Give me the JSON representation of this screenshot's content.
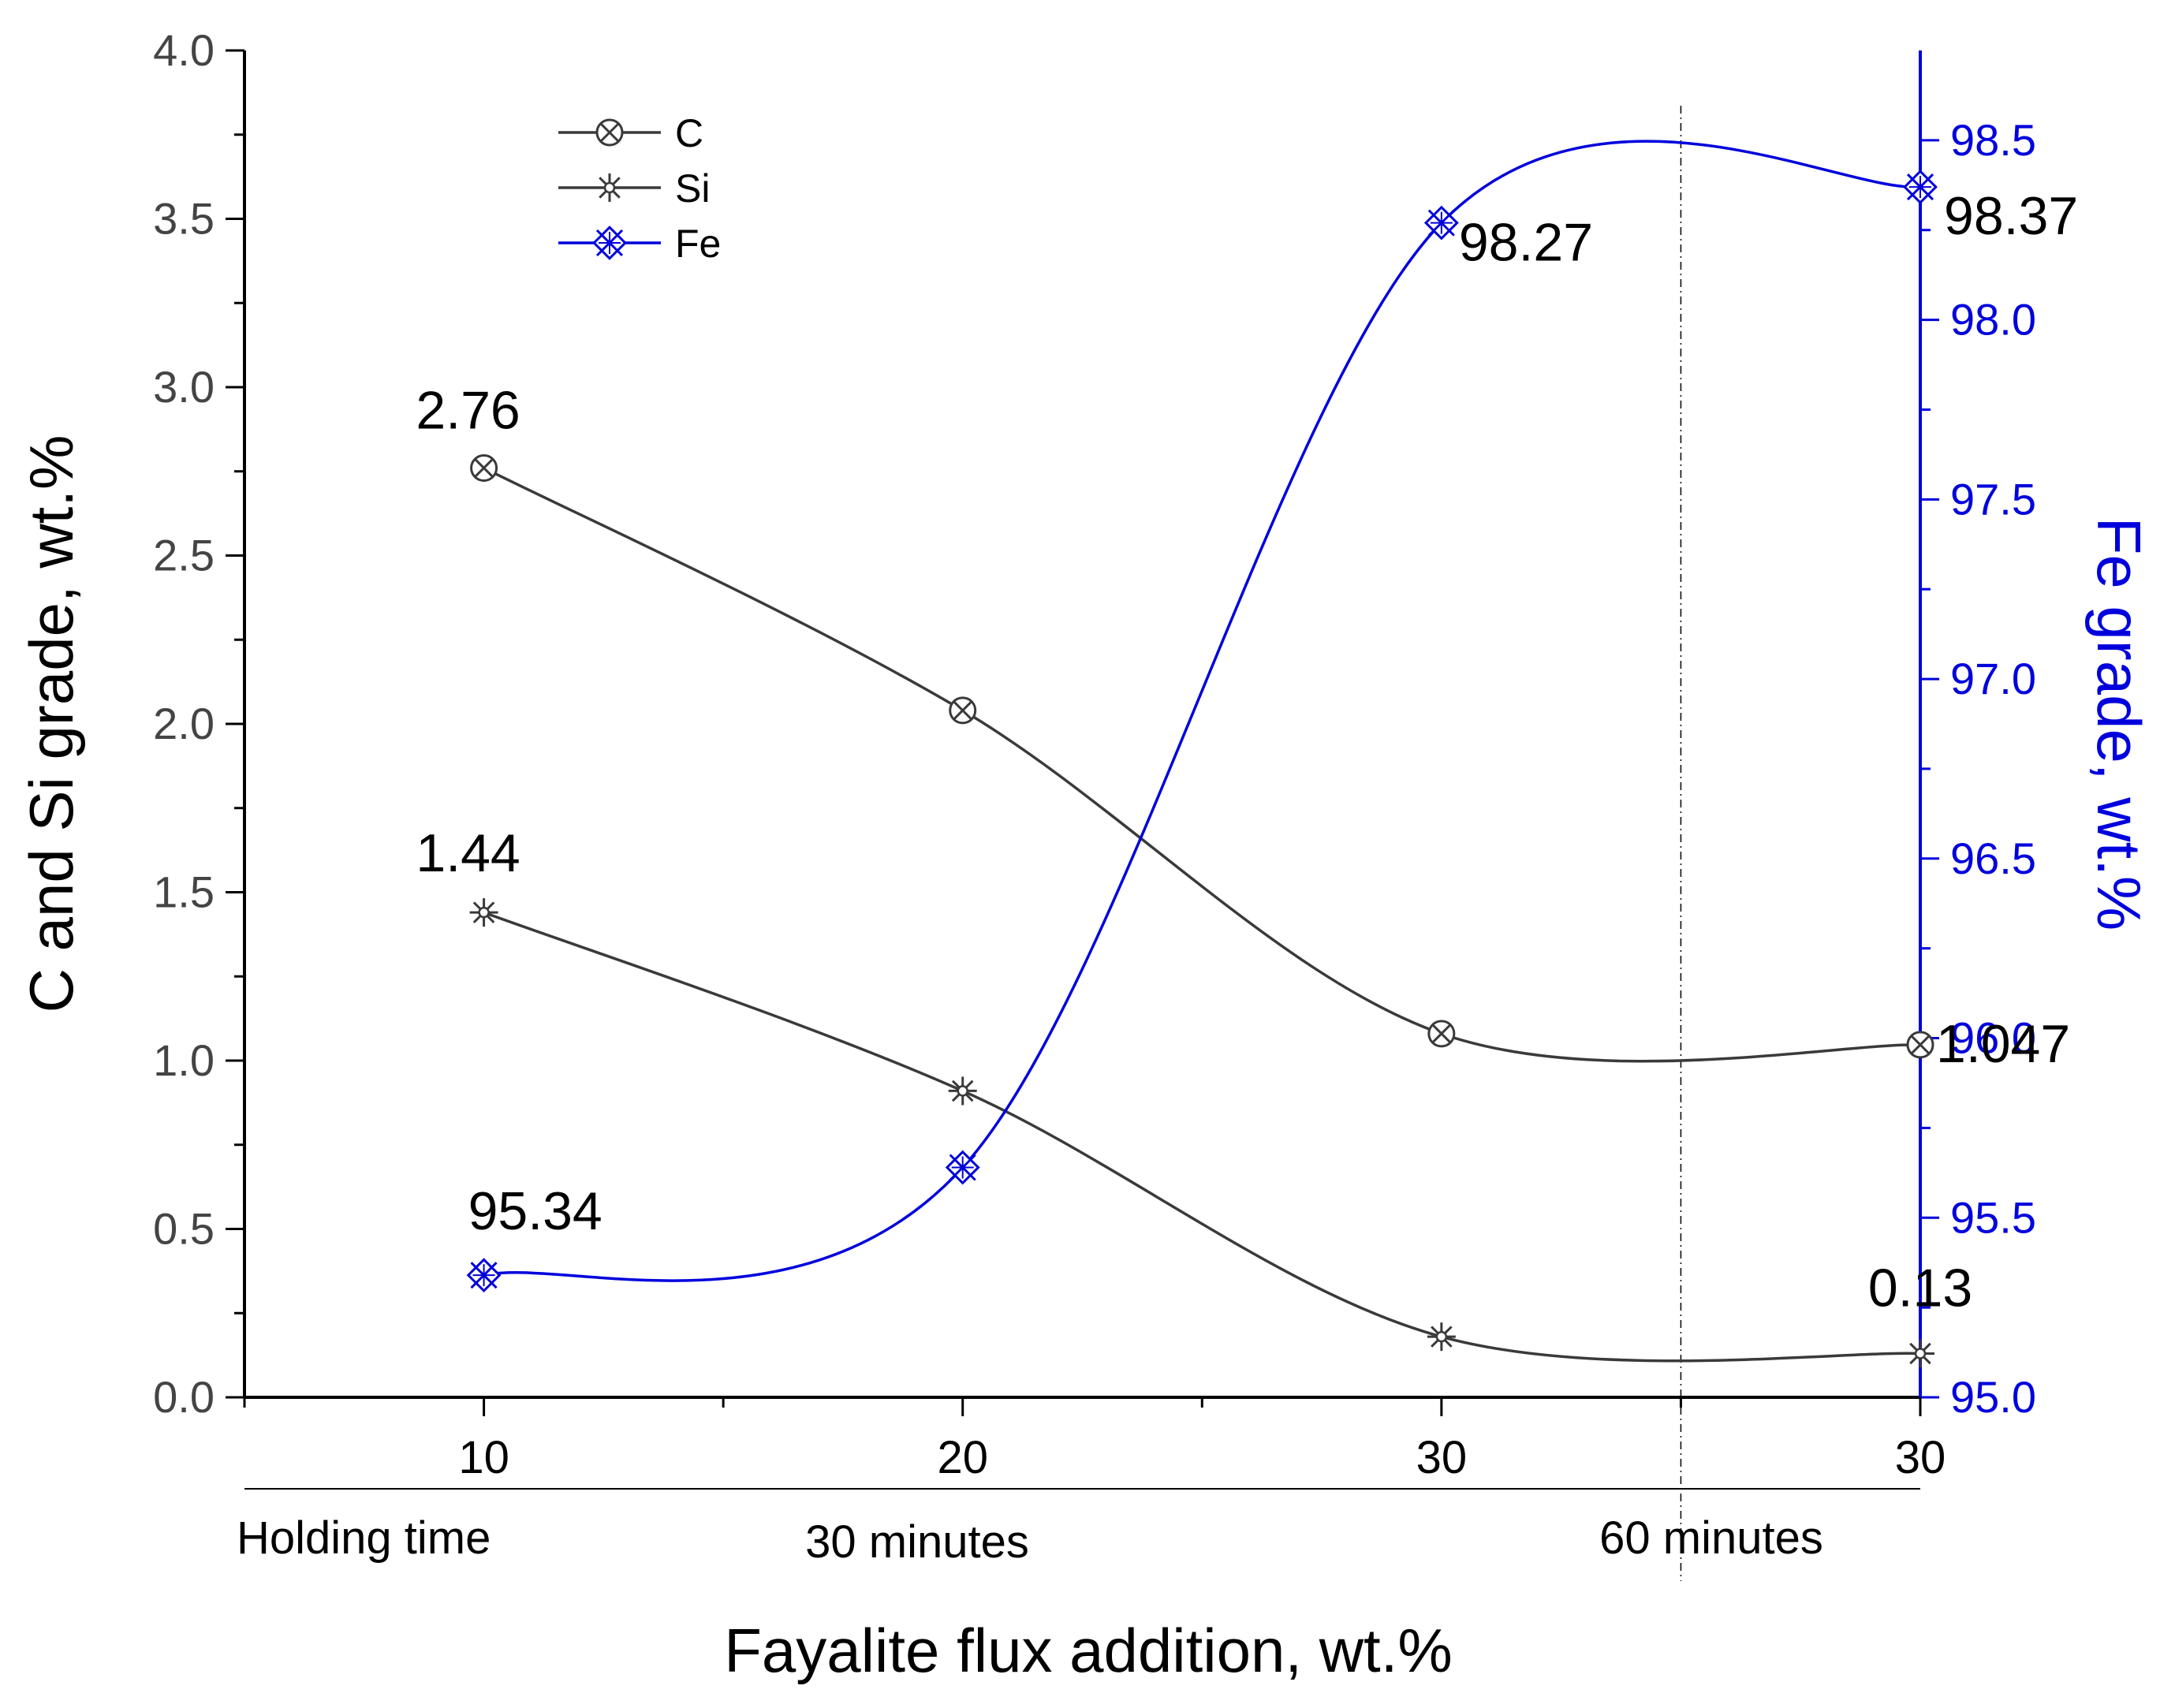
{
  "chart_data": {
    "type": "line",
    "x_positions": [
      "10",
      "20",
      "30",
      "30"
    ],
    "categories": [
      "10",
      "20",
      "30",
      "30"
    ],
    "xlabel": "Fayalite flux addition, wt.%",
    "ylabel_left": "C and Si grade, wt.%",
    "ylabel_right": "Fe grade, wt.%",
    "ylim_left": [
      0.0,
      4.0
    ],
    "ylim_right": [
      95.0,
      98.75
    ],
    "yticks_left": [
      "0.0",
      "0.5",
      "1.0",
      "1.5",
      "2.0",
      "2.5",
      "3.0",
      "3.5",
      "4.0"
    ],
    "yticks_right": [
      "95.0",
      "95.5",
      "96.0",
      "96.5",
      "97.0",
      "97.5",
      "98.0",
      "98.5"
    ],
    "holding_time": {
      "label": "Holding time",
      "groups": [
        "30 minutes",
        "60 minutes"
      ]
    },
    "series": [
      {
        "name": "C",
        "axis": "left",
        "color": "#3a3a3a",
        "marker": "circle-x",
        "values": [
          2.76,
          2.04,
          1.08,
          1.047
        ]
      },
      {
        "name": "Si",
        "axis": "left",
        "color": "#3a3a3a",
        "marker": "star",
        "values": [
          1.44,
          0.91,
          0.18,
          0.13
        ]
      },
      {
        "name": "Fe",
        "axis": "right",
        "color": "#0000dd",
        "marker": "square-x",
        "values": [
          95.34,
          95.64,
          98.27,
          98.37
        ]
      }
    ],
    "annotations": [
      {
        "series": "C",
        "index": 0,
        "text": "2.76"
      },
      {
        "series": "C",
        "index": 3,
        "text": "1.047"
      },
      {
        "series": "Si",
        "index": 0,
        "text": "1.44"
      },
      {
        "series": "Si",
        "index": 3,
        "text": "0.13"
      },
      {
        "series": "Fe",
        "index": 0,
        "text": "95.34"
      },
      {
        "series": "Fe",
        "index": 2,
        "text": "98.27"
      },
      {
        "series": "Fe",
        "index": 3,
        "text": "98.37"
      }
    ],
    "legend": {
      "placement": "top-left",
      "entries": [
        "C",
        "Si",
        "Fe"
      ]
    },
    "grid": false,
    "colors": {
      "left_axis": "#000000",
      "right_axis": "#0000dd",
      "tick_text_left": "#444444"
    }
  }
}
